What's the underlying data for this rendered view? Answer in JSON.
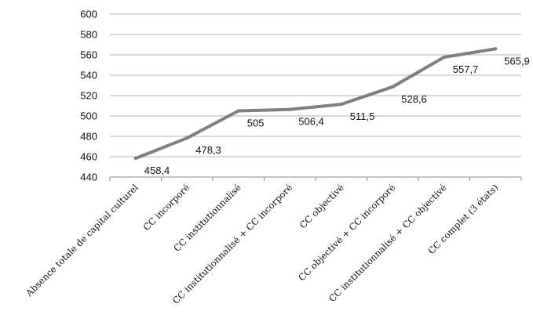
{
  "chart_data": {
    "type": "line",
    "title": "",
    "xlabel": "",
    "ylabel": "",
    "categories": [
      "Absence totale de capital culturel",
      "CC incorporé",
      "CC institutionnalisé",
      "CC institutionnalisé + CC incorporé",
      "CC objectivé",
      "CC objectivé + CC incorporé",
      "CC institutionnalisé + CC objectivé",
      "CC complet (3 états)"
    ],
    "series": [
      {
        "values": [
          458.4,
          478.3,
          505,
          506.4,
          511.5,
          528.6,
          557.7,
          565.9
        ],
        "data_labels": [
          "458,4",
          "478,3",
          "505",
          "506,4",
          "511,5",
          "528,6",
          "557,7",
          "565,9"
        ],
        "color": "#7f7f7f"
      }
    ],
    "ylim": [
      440,
      600
    ],
    "yticks": [
      440,
      460,
      480,
      500,
      520,
      540,
      560,
      580,
      600
    ],
    "grid": true,
    "legend": "none"
  }
}
